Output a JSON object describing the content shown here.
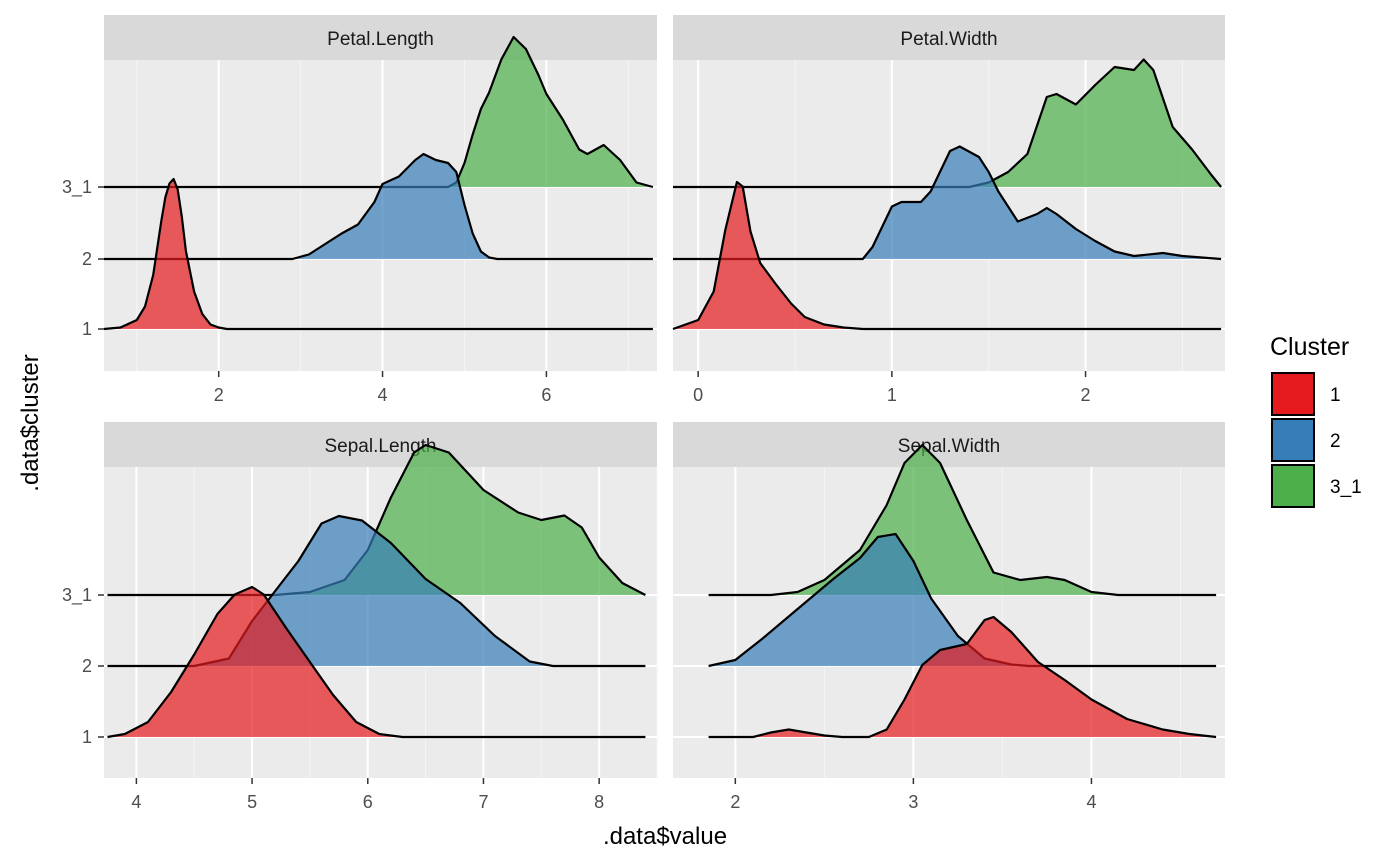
{
  "chart_data": {
    "type": "ridgeline",
    "xlabel": ".data$value",
    "ylabel": ".data$cluster",
    "clusters": [
      "1",
      "2",
      "3_1"
    ],
    "colors": {
      "1": "#E41A1C",
      "2": "#377EB8",
      "3_1": "#4DAF4A"
    },
    "legend": {
      "title": "Cluster",
      "placement": "right",
      "items": [
        "1",
        "2",
        "3_1"
      ]
    },
    "facets": [
      {
        "name": "Petal.Length",
        "xlim": [
          0.6,
          7.35
        ],
        "xticks": [
          2,
          4,
          6
        ],
        "series": [
          {
            "cluster": "1",
            "points": [
              [
                0.6,
                0
              ],
              [
                0.8,
                0.01
              ],
              [
                1.0,
                0.06
              ],
              [
                1.1,
                0.15
              ],
              [
                1.2,
                0.36
              ],
              [
                1.3,
                0.72
              ],
              [
                1.35,
                0.88
              ],
              [
                1.4,
                0.97
              ],
              [
                1.45,
                1.0
              ],
              [
                1.5,
                0.93
              ],
              [
                1.55,
                0.75
              ],
              [
                1.6,
                0.52
              ],
              [
                1.7,
                0.25
              ],
              [
                1.8,
                0.1
              ],
              [
                1.9,
                0.03
              ],
              [
                2.0,
                0.01
              ],
              [
                2.1,
                0
              ],
              [
                7.3,
                0
              ]
            ]
          },
          {
            "cluster": "2",
            "points": [
              [
                0.6,
                0
              ],
              [
                2.9,
                0
              ],
              [
                3.1,
                0.03
              ],
              [
                3.3,
                0.1
              ],
              [
                3.5,
                0.17
              ],
              [
                3.7,
                0.23
              ],
              [
                3.9,
                0.38
              ],
              [
                4.0,
                0.5
              ],
              [
                4.2,
                0.55
              ],
              [
                4.4,
                0.66
              ],
              [
                4.5,
                0.7
              ],
              [
                4.65,
                0.66
              ],
              [
                4.8,
                0.64
              ],
              [
                4.9,
                0.58
              ],
              [
                5.0,
                0.36
              ],
              [
                5.1,
                0.17
              ],
              [
                5.2,
                0.05
              ],
              [
                5.3,
                0.01
              ],
              [
                5.4,
                0
              ],
              [
                7.3,
                0
              ]
            ]
          },
          {
            "cluster": "3_1",
            "points": [
              [
                0.6,
                0
              ],
              [
                4.8,
                0
              ],
              [
                4.9,
                0.03
              ],
              [
                5.0,
                0.16
              ],
              [
                5.1,
                0.35
              ],
              [
                5.2,
                0.52
              ],
              [
                5.3,
                0.63
              ],
              [
                5.45,
                0.85
              ],
              [
                5.6,
                1.0
              ],
              [
                5.75,
                0.92
              ],
              [
                5.9,
                0.75
              ],
              [
                6.0,
                0.62
              ],
              [
                6.2,
                0.45
              ],
              [
                6.4,
                0.25
              ],
              [
                6.5,
                0.22
              ],
              [
                6.7,
                0.28
              ],
              [
                6.9,
                0.18
              ],
              [
                7.1,
                0.03
              ],
              [
                7.3,
                0
              ]
            ]
          }
        ]
      },
      {
        "name": "Petal.Width",
        "xlim": [
          -0.13,
          2.72
        ],
        "xticks": [
          0,
          1,
          2
        ],
        "series": [
          {
            "cluster": "1",
            "points": [
              [
                -0.13,
                0
              ],
              [
                0.0,
                0.06
              ],
              [
                0.08,
                0.25
              ],
              [
                0.14,
                0.66
              ],
              [
                0.2,
                0.98
              ],
              [
                0.23,
                0.95
              ],
              [
                0.27,
                0.65
              ],
              [
                0.32,
                0.44
              ],
              [
                0.4,
                0.3
              ],
              [
                0.48,
                0.17
              ],
              [
                0.55,
                0.08
              ],
              [
                0.65,
                0.03
              ],
              [
                0.75,
                0.01
              ],
              [
                0.85,
                0
              ],
              [
                2.7,
                0
              ]
            ]
          },
          {
            "cluster": "2",
            "points": [
              [
                -0.13,
                0
              ],
              [
                0.85,
                0
              ],
              [
                0.9,
                0.08
              ],
              [
                1.0,
                0.35
              ],
              [
                1.05,
                0.38
              ],
              [
                1.15,
                0.38
              ],
              [
                1.2,
                0.45
              ],
              [
                1.3,
                0.72
              ],
              [
                1.35,
                0.75
              ],
              [
                1.45,
                0.68
              ],
              [
                1.5,
                0.58
              ],
              [
                1.55,
                0.45
              ],
              [
                1.65,
                0.25
              ],
              [
                1.75,
                0.3
              ],
              [
                1.8,
                0.34
              ],
              [
                1.85,
                0.3
              ],
              [
                1.95,
                0.2
              ],
              [
                2.05,
                0.12
              ],
              [
                2.15,
                0.05
              ],
              [
                2.25,
                0.02
              ],
              [
                2.4,
                0.04
              ],
              [
                2.5,
                0.02
              ],
              [
                2.7,
                0
              ]
            ]
          },
          {
            "cluster": "3_1",
            "points": [
              [
                -0.13,
                0
              ],
              [
                1.4,
                0
              ],
              [
                1.5,
                0.03
              ],
              [
                1.6,
                0.1
              ],
              [
                1.7,
                0.22
              ],
              [
                1.8,
                0.6
              ],
              [
                1.85,
                0.62
              ],
              [
                1.95,
                0.55
              ],
              [
                2.05,
                0.68
              ],
              [
                2.15,
                0.8
              ],
              [
                2.25,
                0.78
              ],
              [
                2.3,
                0.85
              ],
              [
                2.35,
                0.78
              ],
              [
                2.45,
                0.4
              ],
              [
                2.55,
                0.25
              ],
              [
                2.65,
                0.08
              ],
              [
                2.7,
                0
              ]
            ]
          }
        ]
      },
      {
        "name": "Sepal.Length",
        "xlim": [
          3.72,
          8.5
        ],
        "xticks": [
          4,
          5,
          6,
          7,
          8
        ],
        "series": [
          {
            "cluster": "1",
            "points": [
              [
                3.75,
                0
              ],
              [
                3.9,
                0.02
              ],
              [
                4.1,
                0.1
              ],
              [
                4.3,
                0.3
              ],
              [
                4.5,
                0.55
              ],
              [
                4.7,
                0.82
              ],
              [
                4.85,
                0.95
              ],
              [
                5.0,
                1.0
              ],
              [
                5.1,
                0.95
              ],
              [
                5.3,
                0.72
              ],
              [
                5.5,
                0.5
              ],
              [
                5.7,
                0.28
              ],
              [
                5.9,
                0.1
              ],
              [
                6.1,
                0.02
              ],
              [
                6.3,
                0
              ],
              [
                8.4,
                0
              ]
            ]
          },
          {
            "cluster": "2",
            "points": [
              [
                3.75,
                0
              ],
              [
                4.5,
                0
              ],
              [
                4.8,
                0.05
              ],
              [
                5.0,
                0.3
              ],
              [
                5.2,
                0.5
              ],
              [
                5.4,
                0.7
              ],
              [
                5.6,
                0.95
              ],
              [
                5.75,
                1.0
              ],
              [
                5.95,
                0.97
              ],
              [
                6.2,
                0.82
              ],
              [
                6.5,
                0.58
              ],
              [
                6.8,
                0.42
              ],
              [
                7.1,
                0.2
              ],
              [
                7.4,
                0.03
              ],
              [
                7.6,
                0
              ],
              [
                8.4,
                0
              ]
            ]
          },
          {
            "cluster": "3_1",
            "points": [
              [
                3.75,
                0
              ],
              [
                5.2,
                0
              ],
              [
                5.5,
                0.02
              ],
              [
                5.8,
                0.1
              ],
              [
                6.0,
                0.3
              ],
              [
                6.2,
                0.65
              ],
              [
                6.4,
                0.95
              ],
              [
                6.5,
                1.0
              ],
              [
                6.7,
                0.95
              ],
              [
                7.0,
                0.7
              ],
              [
                7.3,
                0.55
              ],
              [
                7.5,
                0.5
              ],
              [
                7.7,
                0.53
              ],
              [
                7.85,
                0.45
              ],
              [
                8.0,
                0.25
              ],
              [
                8.2,
                0.08
              ],
              [
                8.4,
                0
              ]
            ]
          }
        ]
      },
      {
        "name": "Sepal.Width",
        "xlim": [
          1.65,
          4.75
        ],
        "xticks": [
          2,
          3,
          4
        ],
        "series": [
          {
            "cluster": "1",
            "points": [
              [
                1.85,
                0
              ],
              [
                2.1,
                0
              ],
              [
                2.2,
                0.03
              ],
              [
                2.3,
                0.05
              ],
              [
                2.4,
                0.03
              ],
              [
                2.5,
                0.01
              ],
              [
                2.6,
                0
              ],
              [
                2.75,
                0
              ],
              [
                2.85,
                0.05
              ],
              [
                2.95,
                0.25
              ],
              [
                3.05,
                0.48
              ],
              [
                3.15,
                0.58
              ],
              [
                3.3,
                0.62
              ],
              [
                3.4,
                0.78
              ],
              [
                3.45,
                0.8
              ],
              [
                3.55,
                0.7
              ],
              [
                3.7,
                0.5
              ],
              [
                3.85,
                0.38
              ],
              [
                4.0,
                0.25
              ],
              [
                4.2,
                0.12
              ],
              [
                4.4,
                0.05
              ],
              [
                4.55,
                0.02
              ],
              [
                4.7,
                0
              ]
            ]
          },
          {
            "cluster": "2",
            "points": [
              [
                1.85,
                0
              ],
              [
                2.0,
                0.04
              ],
              [
                2.15,
                0.18
              ],
              [
                2.35,
                0.38
              ],
              [
                2.55,
                0.58
              ],
              [
                2.7,
                0.72
              ],
              [
                2.8,
                0.86
              ],
              [
                2.9,
                0.88
              ],
              [
                3.0,
                0.7
              ],
              [
                3.1,
                0.45
              ],
              [
                3.25,
                0.2
              ],
              [
                3.4,
                0.05
              ],
              [
                3.55,
                0.01
              ],
              [
                3.65,
                0
              ],
              [
                4.7,
                0
              ]
            ]
          },
          {
            "cluster": "3_1",
            "points": [
              [
                1.85,
                0
              ],
              [
                2.2,
                0
              ],
              [
                2.35,
                0.02
              ],
              [
                2.5,
                0.1
              ],
              [
                2.7,
                0.3
              ],
              [
                2.85,
                0.6
              ],
              [
                2.95,
                0.88
              ],
              [
                3.05,
                1.0
              ],
              [
                3.15,
                0.88
              ],
              [
                3.3,
                0.5
              ],
              [
                3.45,
                0.15
              ],
              [
                3.6,
                0.1
              ],
              [
                3.75,
                0.12
              ],
              [
                3.85,
                0.1
              ],
              [
                4.0,
                0.02
              ],
              [
                4.15,
                0
              ],
              [
                4.7,
                0
              ]
            ]
          }
        ]
      }
    ]
  }
}
